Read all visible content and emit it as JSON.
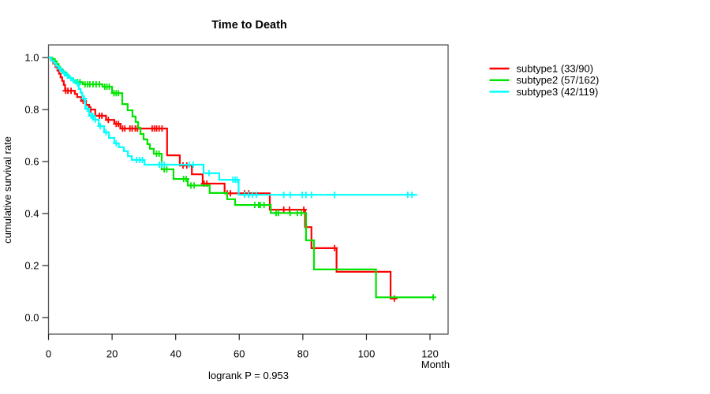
{
  "chart_data": {
    "type": "line",
    "variant": "kaplan-meier step curves with censor plus-marks",
    "title": "Time to Death",
    "xlabel": "Month",
    "ylabel": "cumulative survival rate",
    "footnote": "logrank P = 0.953",
    "xlim": [
      0,
      126
    ],
    "ylim": [
      0,
      1.05
    ],
    "x_ticks": [
      0,
      20,
      40,
      60,
      80,
      100,
      120
    ],
    "x_tick_labels": [
      "0",
      "20",
      "40",
      "60",
      "80",
      "100",
      "120"
    ],
    "y_tick_values": [
      0,
      0.2,
      0.4,
      0.6,
      0.8,
      1.0
    ],
    "y_tick_labels": [
      "0.0",
      "0.2",
      "0.4",
      "0.6",
      "0.8",
      "1.0"
    ],
    "grid": "off",
    "legend_position": "right-margin-top",
    "series": [
      {
        "name": "subtype1 (33/90)",
        "short": "subtype1",
        "color": "#ff0000",
        "end_time": 109.5,
        "steps": [
          [
            0,
            1.0
          ],
          [
            0.8,
            0.989
          ],
          [
            1.5,
            0.977
          ],
          [
            2.2,
            0.963
          ],
          [
            2.8,
            0.95
          ],
          [
            3.3,
            0.938
          ],
          [
            3.8,
            0.924
          ],
          [
            4.3,
            0.91
          ],
          [
            4.8,
            0.895
          ],
          [
            5.2,
            0.872
          ],
          [
            8.3,
            0.86
          ],
          [
            9.0,
            0.848
          ],
          [
            10.3,
            0.833
          ],
          [
            11.8,
            0.818
          ],
          [
            12.8,
            0.8
          ],
          [
            14.7,
            0.776
          ],
          [
            18.1,
            0.76
          ],
          [
            20.7,
            0.745
          ],
          [
            22.6,
            0.727
          ],
          [
            37.3,
            0.624
          ],
          [
            41.3,
            0.585
          ],
          [
            45.1,
            0.551
          ],
          [
            48.5,
            0.515
          ],
          [
            55.4,
            0.478
          ],
          [
            69.6,
            0.415
          ],
          [
            80.7,
            0.348
          ],
          [
            82.7,
            0.267
          ],
          [
            90.6,
            0.176
          ],
          [
            107.6,
            0.073
          ]
        ],
        "censors": [
          [
            5.4,
            0.872
          ],
          [
            6.1,
            0.872
          ],
          [
            7.1,
            0.872
          ],
          [
            10.9,
            0.833
          ],
          [
            13.3,
            0.8
          ],
          [
            16.0,
            0.776
          ],
          [
            16.8,
            0.776
          ],
          [
            18.8,
            0.76
          ],
          [
            21.3,
            0.745
          ],
          [
            22.0,
            0.745
          ],
          [
            23.3,
            0.727
          ],
          [
            24.0,
            0.727
          ],
          [
            25.6,
            0.727
          ],
          [
            26.3,
            0.727
          ],
          [
            27.3,
            0.727
          ],
          [
            28.0,
            0.727
          ],
          [
            32.6,
            0.727
          ],
          [
            33.3,
            0.727
          ],
          [
            34.0,
            0.727
          ],
          [
            34.8,
            0.727
          ],
          [
            35.7,
            0.727
          ],
          [
            42.3,
            0.585
          ],
          [
            43.5,
            0.585
          ],
          [
            48.9,
            0.515
          ],
          [
            49.8,
            0.515
          ],
          [
            56.2,
            0.478
          ],
          [
            57.2,
            0.478
          ],
          [
            61.7,
            0.478
          ],
          [
            63.0,
            0.478
          ],
          [
            74.0,
            0.415
          ],
          [
            75.8,
            0.415
          ],
          [
            80.3,
            0.415
          ],
          [
            90.0,
            0.267
          ],
          [
            108.8,
            0.073
          ]
        ]
      },
      {
        "name": "subtype2 (57/162)",
        "short": "subtype2",
        "color": "#00e400",
        "end_time": 121.3,
        "steps": [
          [
            0,
            1.0
          ],
          [
            1.2,
            0.994
          ],
          [
            2.0,
            0.985
          ],
          [
            2.6,
            0.975
          ],
          [
            3.2,
            0.964
          ],
          [
            3.7,
            0.953
          ],
          [
            4.5,
            0.943
          ],
          [
            5.5,
            0.932
          ],
          [
            6.3,
            0.922
          ],
          [
            7.2,
            0.913
          ],
          [
            8.5,
            0.905
          ],
          [
            10.8,
            0.897
          ],
          [
            17.0,
            0.888
          ],
          [
            20.0,
            0.863
          ],
          [
            23.2,
            0.821
          ],
          [
            24.9,
            0.797
          ],
          [
            26.4,
            0.773
          ],
          [
            27.4,
            0.752
          ],
          [
            28.2,
            0.73
          ],
          [
            28.9,
            0.706
          ],
          [
            29.9,
            0.685
          ],
          [
            31.1,
            0.667
          ],
          [
            31.9,
            0.649
          ],
          [
            33.1,
            0.63
          ],
          [
            35.6,
            0.57
          ],
          [
            39.3,
            0.533
          ],
          [
            43.8,
            0.508
          ],
          [
            50.7,
            0.479
          ],
          [
            56.2,
            0.455
          ],
          [
            58.7,
            0.433
          ],
          [
            69.9,
            0.402
          ],
          [
            81.0,
            0.297
          ],
          [
            83.5,
            0.185
          ],
          [
            103.0,
            0.078
          ]
        ],
        "censors": [
          [
            9.1,
            0.905
          ],
          [
            9.9,
            0.905
          ],
          [
            11.5,
            0.897
          ],
          [
            12.3,
            0.897
          ],
          [
            13.0,
            0.897
          ],
          [
            14.0,
            0.897
          ],
          [
            15.0,
            0.897
          ],
          [
            16.0,
            0.897
          ],
          [
            17.7,
            0.888
          ],
          [
            18.4,
            0.888
          ],
          [
            19.1,
            0.888
          ],
          [
            20.6,
            0.863
          ],
          [
            21.3,
            0.863
          ],
          [
            22.0,
            0.863
          ],
          [
            34.0,
            0.63
          ],
          [
            34.8,
            0.63
          ],
          [
            36.4,
            0.57
          ],
          [
            37.2,
            0.57
          ],
          [
            42.5,
            0.533
          ],
          [
            43.3,
            0.533
          ],
          [
            44.8,
            0.508
          ],
          [
            45.8,
            0.508
          ],
          [
            64.9,
            0.433
          ],
          [
            66.1,
            0.433
          ],
          [
            66.6,
            0.433
          ],
          [
            67.8,
            0.433
          ],
          [
            71.6,
            0.402
          ],
          [
            72.3,
            0.402
          ],
          [
            76.0,
            0.402
          ],
          [
            78.3,
            0.402
          ],
          [
            79.5,
            0.402
          ],
          [
            121.0,
            0.078
          ]
        ]
      },
      {
        "name": "subtype3 (42/119)",
        "short": "subtype3",
        "color": "#00ffff",
        "end_time": 116.0,
        "steps": [
          [
            0,
            1.0
          ],
          [
            0.9,
            0.988
          ],
          [
            1.7,
            0.978
          ],
          [
            2.4,
            0.966
          ],
          [
            3.3,
            0.957
          ],
          [
            4.0,
            0.948
          ],
          [
            4.7,
            0.939
          ],
          [
            5.6,
            0.93
          ],
          [
            6.5,
            0.921
          ],
          [
            7.3,
            0.912
          ],
          [
            8.6,
            0.9
          ],
          [
            9.5,
            0.879
          ],
          [
            10.1,
            0.865
          ],
          [
            10.6,
            0.852
          ],
          [
            11.1,
            0.842
          ],
          [
            11.6,
            0.803
          ],
          [
            12.8,
            0.776
          ],
          [
            14.1,
            0.761
          ],
          [
            15.8,
            0.736
          ],
          [
            17.5,
            0.712
          ],
          [
            19.0,
            0.691
          ],
          [
            20.7,
            0.67
          ],
          [
            22.1,
            0.655
          ],
          [
            23.7,
            0.64
          ],
          [
            25.0,
            0.621
          ],
          [
            26.2,
            0.606
          ],
          [
            30.2,
            0.588
          ],
          [
            48.8,
            0.555
          ],
          [
            53.7,
            0.53
          ],
          [
            59.8,
            0.472
          ]
        ],
        "censors": [
          [
            3.6,
            0.957
          ],
          [
            5.0,
            0.939
          ],
          [
            6.0,
            0.93
          ],
          [
            7.8,
            0.912
          ],
          [
            9.2,
            0.9
          ],
          [
            11.2,
            0.842
          ],
          [
            12.2,
            0.803
          ],
          [
            13.4,
            0.776
          ],
          [
            13.9,
            0.776
          ],
          [
            14.7,
            0.761
          ],
          [
            16.3,
            0.736
          ],
          [
            18.1,
            0.712
          ],
          [
            21.3,
            0.67
          ],
          [
            27.7,
            0.606
          ],
          [
            28.7,
            0.606
          ],
          [
            29.5,
            0.606
          ],
          [
            34.9,
            0.588
          ],
          [
            35.6,
            0.588
          ],
          [
            36.4,
            0.588
          ],
          [
            44.3,
            0.588
          ],
          [
            45.5,
            0.588
          ],
          [
            50.5,
            0.555
          ],
          [
            58.0,
            0.53
          ],
          [
            58.7,
            0.53
          ],
          [
            59.3,
            0.53
          ],
          [
            61.7,
            0.472
          ],
          [
            62.9,
            0.472
          ],
          [
            64.1,
            0.472
          ],
          [
            65.4,
            0.472
          ],
          [
            74.0,
            0.472
          ],
          [
            76.0,
            0.472
          ],
          [
            79.8,
            0.472
          ],
          [
            81.0,
            0.472
          ],
          [
            82.7,
            0.472
          ],
          [
            90.0,
            0.472
          ],
          [
            113.0,
            0.472
          ],
          [
            114.3,
            0.472
          ]
        ]
      }
    ]
  },
  "colors": {
    "curve_red": "#ff0000",
    "curve_green": "#00e400",
    "curve_cyan": "#00ffff",
    "axis_box": "#555555",
    "tick": "#222222",
    "text": "#000000",
    "background": "#ffffff"
  }
}
